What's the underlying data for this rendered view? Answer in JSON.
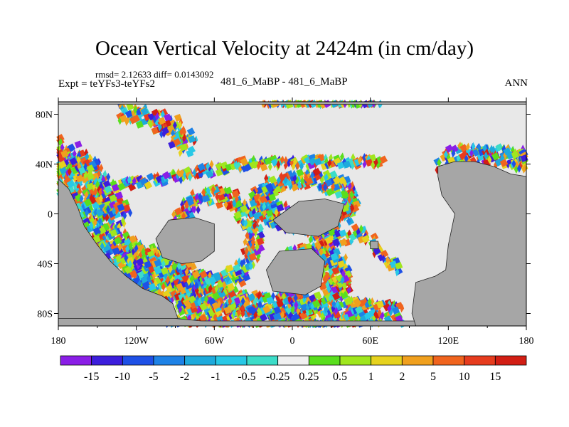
{
  "header": {
    "title": "Ocean Vertical Velocity at 2424m (in cm/day)",
    "stats": "rmsd= 2.12633  diff= 0.0143092",
    "expt": "Expt = teYFs3-teYFs2",
    "center_label": "481_6_MaBP - 481_6_MaBP",
    "season": "ANN"
  },
  "chart_data": {
    "type": "heatmap",
    "title": "Ocean Vertical Velocity at 2424m (in cm/day)",
    "x_axis": {
      "range": [
        -180,
        180
      ],
      "ticks": [
        "180",
        "120W",
        "60W",
        "0",
        "60E",
        "120E",
        "180"
      ]
    },
    "y_axis": {
      "range": [
        -90,
        90
      ],
      "ticks": [
        "80N",
        "40N",
        "0",
        "40S",
        "80S"
      ]
    },
    "colorbar": {
      "levels": [
        "-15",
        "-10",
        "-5",
        "-2",
        "-1",
        "-0.5",
        "-0.25",
        "0.25",
        "0.5",
        "1",
        "2",
        "5",
        "10",
        "15"
      ],
      "colors": [
        "#8a1ee6",
        "#3c1edc",
        "#1e50e6",
        "#1e82e6",
        "#1eaadc",
        "#28c8e6",
        "#3cdcc8",
        "#f0f0f0",
        "#5ade1e",
        "#a0e61e",
        "#e6d21e",
        "#f0a01e",
        "#f0641e",
        "#e63c1e",
        "#d21e14"
      ]
    },
    "land_color": "#a6a6a6",
    "neutral_color": "#e8e8e8",
    "regions": [
      {
        "name": "western-america-arc",
        "type": "arc",
        "points": [
          [
            -180,
            45
          ],
          [
            -170,
            38
          ],
          [
            -160,
            20
          ],
          [
            -152,
            0
          ],
          [
            -142,
            -20
          ],
          [
            -132,
            -40
          ],
          [
            -120,
            -55
          ],
          [
            -105,
            -65
          ],
          [
            -90,
            -72
          ],
          [
            -80,
            -80
          ]
        ],
        "width": 13,
        "seed": 1
      },
      {
        "name": "southern-band",
        "type": "arc",
        "points": [
          [
            -80,
            -80
          ],
          [
            -70,
            -80
          ],
          [
            -55,
            -82
          ],
          [
            -40,
            -82
          ],
          [
            -20,
            -83
          ],
          [
            0,
            -83
          ],
          [
            20,
            -83
          ],
          [
            40,
            -82
          ],
          [
            60,
            -80
          ],
          [
            80,
            -80
          ]
        ],
        "width": 7,
        "seed": 2
      },
      {
        "name": "central-arc",
        "type": "arc",
        "points": [
          [
            -130,
            -30
          ],
          [
            -100,
            -40
          ],
          [
            -75,
            -55
          ],
          [
            -55,
            -68
          ],
          [
            -35,
            -72
          ],
          [
            -10,
            -75
          ],
          [
            10,
            -72
          ]
        ],
        "width": 7,
        "seed": 3
      },
      {
        "name": "east-africa-arc",
        "type": "arc",
        "points": [
          [
            28,
            -12
          ],
          [
            25,
            -30
          ],
          [
            28,
            -50
          ],
          [
            35,
            -65
          ],
          [
            45,
            -75
          ],
          [
            60,
            -78
          ]
        ],
        "width": 6,
        "seed": 4
      },
      {
        "name": "north-cluster",
        "type": "arc",
        "points": [
          [
            -130,
            80
          ],
          [
            -110,
            78
          ],
          [
            -95,
            70
          ],
          [
            -85,
            60
          ],
          [
            -78,
            52
          ]
        ],
        "width": 6,
        "seed": 5
      },
      {
        "name": "upper-arc",
        "type": "arc",
        "points": [
          [
            -175,
            43
          ],
          [
            -162,
            37
          ],
          [
            -150,
            27
          ],
          [
            -140,
            10
          ],
          [
            -130,
            -5
          ]
        ],
        "width": 6,
        "seed": 6
      },
      {
        "name": "east-asia-coast",
        "type": "arc",
        "points": [
          [
            118,
            42
          ],
          [
            130,
            47
          ],
          [
            145,
            47
          ],
          [
            160,
            46
          ],
          [
            175,
            44
          ],
          [
            180,
            40
          ]
        ],
        "width": 6,
        "seed": 7
      },
      {
        "name": "mid-southern-arc",
        "type": "arc",
        "points": [
          [
            -110,
            -35
          ],
          [
            -90,
            -55
          ],
          [
            -75,
            -65
          ],
          [
            -55,
            -70
          ],
          [
            -30,
            -75
          ]
        ],
        "width": 6,
        "seed": 8
      },
      {
        "name": "africa-ring",
        "type": "ring",
        "center": [
          -60,
          -20
        ],
        "rx": 30,
        "ry": 35,
        "width": 5,
        "seed": 9
      },
      {
        "name": "ring-mid",
        "type": "ring",
        "center": [
          10,
          10
        ],
        "rx": 35,
        "ry": 18,
        "width": 5,
        "seed": 10
      },
      {
        "name": "arabia-ring",
        "type": "ring",
        "center": [
          15,
          -50
        ],
        "rx": 25,
        "ry": 20,
        "width": 4,
        "seed": 11
      },
      {
        "name": "patch-north",
        "type": "arc",
        "points": [
          [
            -25,
            10
          ],
          [
            -10,
            5
          ],
          [
            5,
            -5
          ],
          [
            15,
            -15
          ],
          [
            30,
            -20
          ],
          [
            45,
            -18
          ]
        ],
        "width": 4,
        "seed": 12
      },
      {
        "name": "north-pacific-green",
        "type": "arc",
        "points": [
          [
            -150,
            20
          ],
          [
            -100,
            28
          ],
          [
            -40,
            40
          ],
          [
            20,
            42
          ],
          [
            70,
            42
          ]
        ],
        "width": 3,
        "seed": 13
      },
      {
        "name": "east-cluster",
        "type": "arc",
        "points": [
          [
            50,
            -12
          ],
          [
            60,
            -20
          ],
          [
            70,
            -35
          ],
          [
            85,
            -45
          ]
        ],
        "width": 3,
        "seed": 14
      },
      {
        "name": "top-rim",
        "type": "arc",
        "points": [
          [
            -20,
            90
          ],
          [
            10,
            90
          ],
          [
            40,
            90
          ],
          [
            70,
            90
          ]
        ],
        "width": 2,
        "seed": 15
      }
    ]
  }
}
